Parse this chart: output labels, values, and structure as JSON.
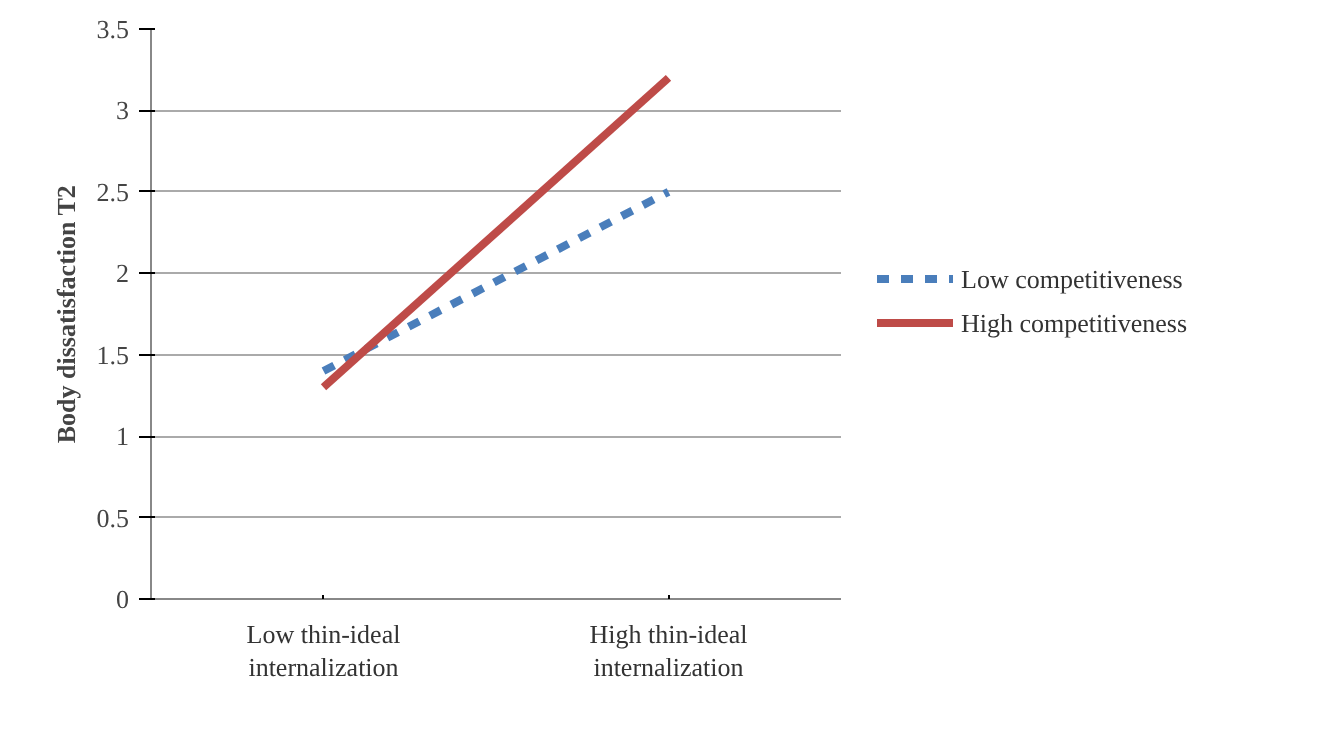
{
  "chart_data": {
    "type": "line",
    "ylabel": "Body dissatisfaction T2",
    "categories": [
      "Low thin-ideal\ninternalization",
      "High thin-ideal\ninternalization"
    ],
    "series": [
      {
        "name": "Low competitiveness",
        "color": "#4a7ebb",
        "values": [
          1.4,
          2.5
        ],
        "line_style": "dashed"
      },
      {
        "name": "High competitiveness",
        "color": "#be4b48",
        "values": [
          1.3,
          3.2
        ],
        "line_style": "solid"
      }
    ],
    "ylim": [
      0,
      3.5
    ],
    "yticks": [
      0,
      0.5,
      1,
      1.5,
      2,
      2.5,
      3,
      3.5
    ],
    "grid": "y",
    "legend": "right",
    "marker": "none"
  }
}
